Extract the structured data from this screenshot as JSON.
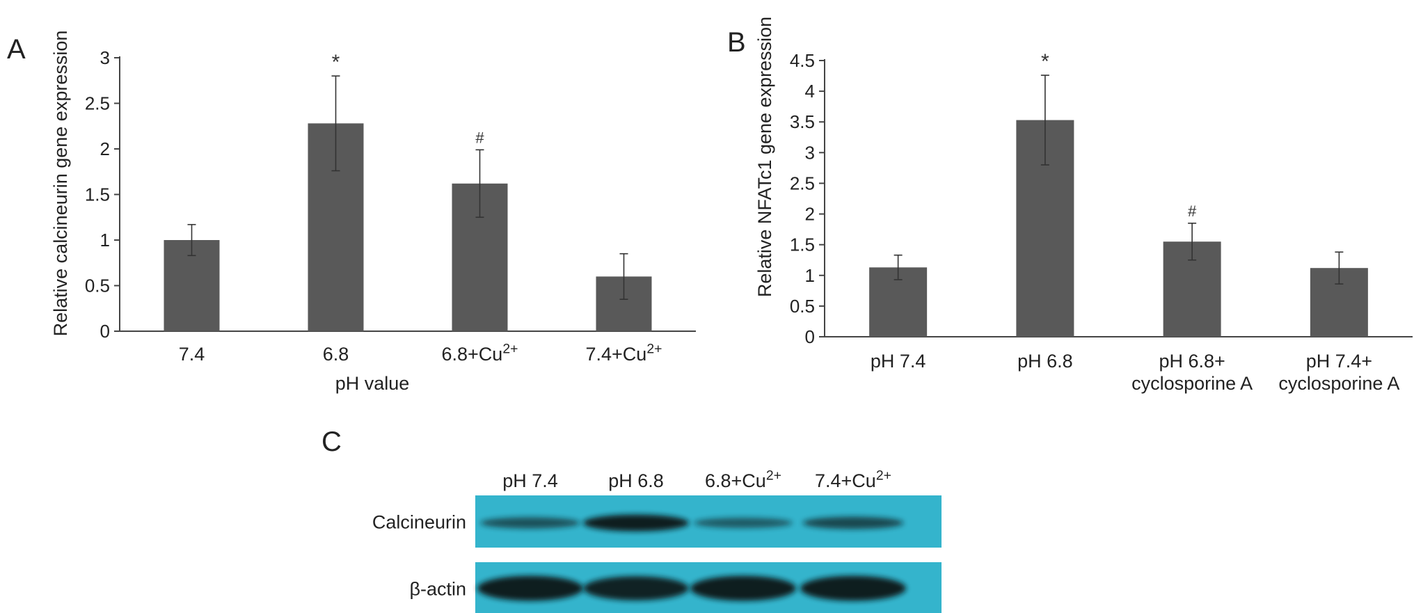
{
  "chart_data": [
    {
      "panel": "A",
      "type": "bar",
      "categories": [
        {
          "base": "7.4",
          "sup": ""
        },
        {
          "base": "6.8",
          "sup": ""
        },
        {
          "base": "6.8+Cu",
          "sup": "2+"
        },
        {
          "base": "7.4+Cu",
          "sup": "2+"
        }
      ],
      "values": [
        1.0,
        2.28,
        1.62,
        0.6
      ],
      "errors": [
        0.17,
        0.52,
        0.37,
        0.25
      ],
      "annotations": [
        "",
        "*",
        "#",
        ""
      ],
      "xlabel": "pH value",
      "ylabel": "Relative calcineurin gene expression",
      "ylim": [
        0,
        3
      ],
      "yticks": [
        "0",
        "0.5",
        "1",
        "1.5",
        "2",
        "2.5",
        "3"
      ],
      "grid": false,
      "bar_color": "#595959"
    },
    {
      "panel": "B",
      "type": "bar",
      "categories": [
        {
          "lines": [
            "pH 7.4"
          ]
        },
        {
          "lines": [
            "pH 6.8"
          ]
        },
        {
          "lines": [
            "pH 6.8+",
            "cyclosporine A"
          ]
        },
        {
          "lines": [
            "pH 7.4+",
            "cyclosporine A"
          ]
        }
      ],
      "values": [
        1.13,
        3.53,
        1.55,
        1.12
      ],
      "errors": [
        0.2,
        0.73,
        0.3,
        0.26
      ],
      "annotations": [
        "",
        "*",
        "#",
        ""
      ],
      "xlabel": "",
      "ylabel": "Relative NFATc1 gene expression",
      "ylim": [
        0,
        4.5
      ],
      "yticks": [
        "0",
        "0.5",
        "1",
        "1.5",
        "2",
        "2.5",
        "3",
        "3.5",
        "4",
        "4.5"
      ],
      "grid": false,
      "bar_color": "#595959"
    }
  ],
  "blot": {
    "panel": "C",
    "lanes": [
      {
        "base": "pH 7.4",
        "sup": ""
      },
      {
        "base": "pH 6.8",
        "sup": ""
      },
      {
        "base": "6.8+Cu",
        "sup": "2+"
      },
      {
        "base": "7.4+Cu",
        "sup": "2+"
      }
    ],
    "rows": [
      {
        "label": "Calcineurin",
        "intensity": [
          0.45,
          1.0,
          0.35,
          0.55
        ]
      },
      {
        "label": "β-actin",
        "intensity": [
          1.0,
          0.95,
          1.0,
          1.0
        ]
      }
    ],
    "membrane_color": "#34b4cc",
    "band_color": "#0a1418"
  }
}
